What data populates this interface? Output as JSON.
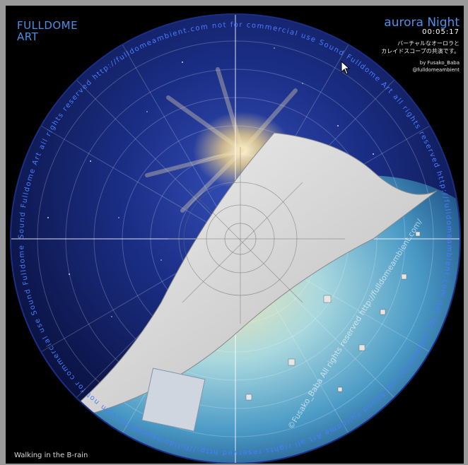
{
  "brand": {
    "label": "FULLDOME\nART"
  },
  "show": {
    "title": "aurora Night",
    "time": "00:05:17",
    "description": "バーチャルなオーロラと\nカレイドスコープの共演です。",
    "credit": "by Fusako_Baba\n@fulldomeambient"
  },
  "caption": "Walking in the B-rain",
  "dome_ring_text": "Sound Fulldome Art  all rights reserved  http://fulldomeambient.com  not for commercial use  ",
  "watermark": "©Fusako_Baba All rights reserved   http://fulldomeambient.com/",
  "colors": {
    "accent_blue": "#4c8fe6",
    "sky_dark": "#0a1240",
    "sky_mid": "#1b2e86",
    "ocean": "#5fb0d8",
    "page_curl": "#d4d4d4"
  },
  "icons": {
    "cursor": "mouse-pointer-icon"
  }
}
